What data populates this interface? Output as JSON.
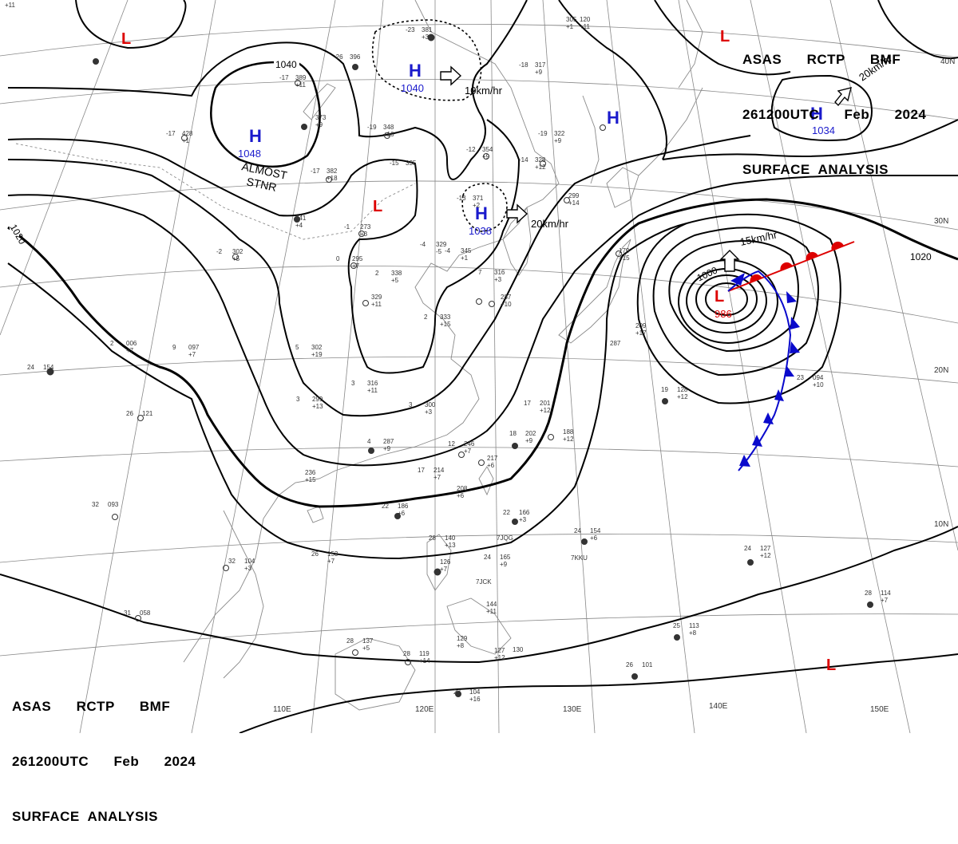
{
  "title_top": {
    "line1": "ASAS      RCTP      BMF",
    "line2": "261200UTC      Feb      2024",
    "line3": "SURFACE  ANALYSIS"
  },
  "title_bottom": {
    "line1": "ASAS      RCTP      BMF",
    "line2": "261200UTC      Feb      2024",
    "line3": "SURFACE  ANALYSIS"
  },
  "colors": {
    "high": "#1a1acc",
    "low": "#dd0000",
    "warm_front": "#dd0000",
    "cold_front": "#0a0acc",
    "isobar": "#000000",
    "grid": "#777777",
    "coast": "#888888"
  },
  "pressure_systems": [
    {
      "type": "L",
      "value": ""
    },
    {
      "type": "H",
      "value": "1048"
    },
    {
      "type": "H",
      "value": "1040"
    },
    {
      "type": "L",
      "value": ""
    },
    {
      "type": "H",
      "value": "1038"
    },
    {
      "type": "H",
      "value": ""
    },
    {
      "type": "L",
      "value": ""
    },
    {
      "type": "H",
      "value": "1034"
    },
    {
      "type": "L",
      "value": "986"
    },
    {
      "type": "L",
      "value": ""
    }
  ],
  "isobar_labels": [
    "1040",
    "1020",
    "1020",
    "1000"
  ],
  "motion_labels": [
    "10km/hr",
    "20km/hr",
    "15km/hr",
    "20km/hr"
  ],
  "stationary_label": [
    "ALMOST",
    "STNR"
  ],
  "lat_labels": [
    "40N",
    "30N",
    "20N",
    "10N"
  ],
  "lon_labels": [
    "110E",
    "120E",
    "130E",
    "140E",
    "150E"
  ],
  "stations": [
    {
      "t": "-23",
      "p": "381",
      "d": "+3"
    },
    {
      "t": "-26",
      "p": "396",
      "d": ""
    },
    {
      "t": "-17",
      "p": "389",
      "d": "+11"
    },
    {
      "t": "",
      "p": "373",
      "d": "+9"
    },
    {
      "t": "-17",
      "p": "428",
      "d": "+1"
    },
    {
      "t": "-19",
      "p": "348",
      "d": "+10"
    },
    {
      "t": "-12",
      "p": "354",
      "d": "+9"
    },
    {
      "t": "-15",
      "p": "335",
      "d": ""
    },
    {
      "t": "-17",
      "p": "382",
      "d": "+18"
    },
    {
      "t": "-19",
      "p": "322",
      "d": "+9"
    },
    {
      "t": "-14",
      "p": "328",
      "d": "+12"
    },
    {
      "t": "",
      "p": "305",
      "d": "+1"
    },
    {
      "t": "-18",
      "p": "317",
      "d": "+9"
    },
    {
      "t": "-13",
      "p": "371",
      "d": "+2"
    },
    {
      "t": "",
      "p": "299",
      "d": "+14"
    },
    {
      "t": "-1",
      "p": "273",
      "d": "+3"
    },
    {
      "t": "-2",
      "p": "302",
      "d": "+5"
    },
    {
      "t": "",
      "p": "341",
      "d": "+4"
    },
    {
      "t": "-4",
      "p": "329",
      "d": "-5"
    },
    {
      "t": "-4",
      "p": "345",
      "d": "+1"
    },
    {
      "t": "0",
      "p": "295",
      "d": "+7"
    },
    {
      "t": "2",
      "p": "338",
      "d": "+5"
    },
    {
      "t": "7",
      "p": "316",
      "d": "+3"
    },
    {
      "t": "",
      "p": "329",
      "d": "+11"
    },
    {
      "t": "2",
      "p": "333",
      "d": "+15"
    },
    {
      "t": "",
      "p": "287",
      "d": "+10"
    },
    {
      "t": "2",
      "p": "006",
      "d": "+7"
    },
    {
      "t": "9",
      "p": "097",
      "d": "+7"
    },
    {
      "t": "5",
      "p": "302",
      "d": "+19"
    },
    {
      "t": "24",
      "p": "154",
      "d": ""
    },
    {
      "t": "3",
      "p": "316",
      "d": "+11"
    },
    {
      "t": "3",
      "p": "299",
      "d": "+13"
    },
    {
      "t": "3",
      "p": "300",
      "d": "+3"
    },
    {
      "t": "26",
      "p": "121",
      "d": ""
    },
    {
      "t": "4",
      "p": "287",
      "d": "+9"
    },
    {
      "t": "12",
      "p": "246",
      "d": "+7"
    },
    {
      "t": "17",
      "p": "214",
      "d": "+7"
    },
    {
      "t": "",
      "p": "217",
      "d": "+6"
    },
    {
      "t": "18",
      "p": "202",
      "d": "+9"
    },
    {
      "t": "",
      "p": "188",
      "d": "+12"
    },
    {
      "t": "17",
      "p": "201",
      "d": "+12"
    },
    {
      "t": "",
      "p": "208",
      "d": "+6"
    },
    {
      "t": "",
      "p": "236",
      "d": "+15"
    },
    {
      "t": "32",
      "p": "093",
      "d": ""
    },
    {
      "t": "22",
      "p": "186",
      "d": "+6"
    },
    {
      "t": "22",
      "p": "166",
      "d": "+3"
    },
    {
      "t": "24",
      "p": "154",
      "d": "+6"
    },
    {
      "t": "26",
      "p": "153",
      "d": "+7"
    },
    {
      "t": "28",
      "p": "140",
      "d": "+13"
    },
    {
      "t": "24",
      "p": "165",
      "d": "+9"
    },
    {
      "t": "32",
      "p": "104",
      "d": "+3"
    },
    {
      "t": "",
      "p": "126",
      "d": "+7"
    },
    {
      "t": "19",
      "p": "128",
      "d": "+12"
    },
    {
      "t": "23",
      "p": "094",
      "d": "+10"
    },
    {
      "t": "24",
      "p": "127",
      "d": "+12"
    },
    {
      "t": "31",
      "p": "058",
      "d": ""
    },
    {
      "t": "28",
      "p": "137",
      "d": "+5"
    },
    {
      "t": "28",
      "p": "119",
      "d": "+14"
    },
    {
      "t": "",
      "p": "129",
      "d": "+8"
    },
    {
      "t": "",
      "p": "127",
      "d": "+12"
    },
    {
      "t": "",
      "p": "130",
      "d": ""
    },
    {
      "t": "",
      "p": "144",
      "d": "+11"
    },
    {
      "t": "25",
      "p": "113",
      "d": "+8"
    },
    {
      "t": "28",
      "p": "114",
      "d": "+7"
    },
    {
      "t": "26",
      "p": "101",
      "d": ""
    },
    {
      "t": "28",
      "p": "104",
      "d": "+16"
    },
    {
      "t": "",
      "p": "179",
      "d": "+15"
    },
    {
      "t": "",
      "p": "287",
      "d": ""
    },
    {
      "t": "",
      "p": "209",
      "d": "+17"
    },
    {
      "t": "",
      "p": "120",
      "d": "+11"
    },
    {
      "t": "",
      "p": "309",
      "d": "+11"
    }
  ],
  "ship_callsigns": [
    "7JQG",
    "7KKU",
    "7JCK"
  ]
}
